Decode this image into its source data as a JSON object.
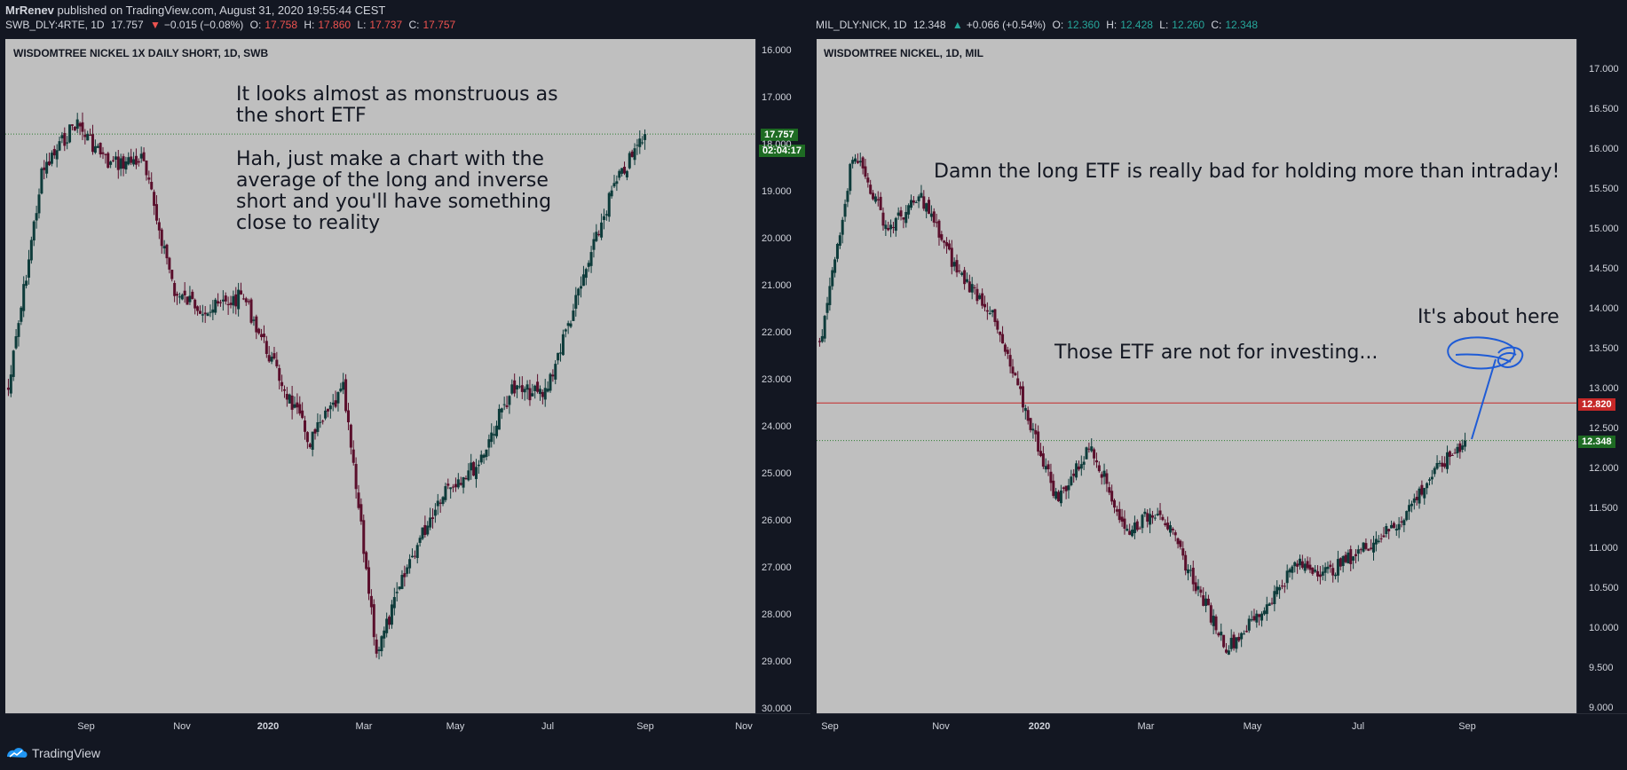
{
  "header": {
    "author": "MrRenev",
    "published": "published on TradingView.com, August 31, 2020 19:55:44 CEST"
  },
  "left": {
    "symbol": "SWB_DLY:4RTE, 1D",
    "last": "17.757",
    "change_arrow": "▼",
    "change": "−0.015 (−0.08%)",
    "o_label": "O:",
    "o": "17.758",
    "h_label": "H:",
    "h": "17.860",
    "l_label": "L:",
    "l": "17.737",
    "c_label": "C:",
    "c": "17.757",
    "title": "WISDOMTREE NICKEL 1X DAILY SHORT, 1D, SWB",
    "note1_line1": "It looks almost as monstruous as",
    "note1_line2": "the short ETF",
    "note2_line1": "Hah, just make a chart with the",
    "note2_line2": "average of the long and inverse",
    "note2_line3": "short and you'll have something",
    "note2_line4": "close to reality",
    "price_tag": "17.757",
    "time_tag": "02:04:17",
    "y_ticks": [
      "16.000",
      "17.000",
      "18.000",
      "19.000",
      "20.000",
      "21.000",
      "22.000",
      "23.000",
      "24.000",
      "25.000",
      "26.000",
      "27.000",
      "28.000",
      "29.000",
      "30.000"
    ],
    "x_ticks": [
      "Sep",
      "Nov",
      "2020",
      "Mar",
      "May",
      "Jul",
      "Sep",
      "Nov"
    ]
  },
  "right": {
    "symbol": "MIL_DLY:NICK, 1D",
    "last": "12.348",
    "change_arrow": "▲",
    "change": "+0.066 (+0.54%)",
    "o_label": "O:",
    "o": "12.360",
    "h_label": "H:",
    "h": "12.428",
    "l_label": "L:",
    "l": "12.260",
    "c_label": "C:",
    "c": "12.348",
    "title": "WISDOMTREE NICKEL, 1D, MIL",
    "note1": "Damn the long ETF is really bad for holding more than intraday!",
    "note2": "It's about here",
    "note3": "Those ETF are not for investing...",
    "red_tag": "12.820",
    "price_tag": "12.348",
    "y_ticks": [
      "17.000",
      "16.500",
      "16.000",
      "15.500",
      "15.000",
      "14.500",
      "14.000",
      "13.500",
      "13.000",
      "12.500",
      "12.000",
      "11.500",
      "11.000",
      "10.500",
      "10.000",
      "9.500",
      "9.000"
    ],
    "x_ticks": [
      "Sep",
      "Nov",
      "2020",
      "Mar",
      "May",
      "Jul",
      "Sep"
    ]
  },
  "footer": {
    "brand": "TradingView"
  },
  "chart_data": [
    {
      "type": "candlestick",
      "title": "WISDOMTREE NICKEL 1X DAILY SHORT, 1D, SWB",
      "y_inverted": true,
      "ylim": [
        16,
        30
      ],
      "x_labels": [
        "Sep",
        "Nov",
        "2020",
        "Mar",
        "May",
        "Jul",
        "Sep",
        "Nov"
      ],
      "close_path": [
        [
          "Aug 2019",
          23.2
        ],
        [
          "Sep 2019",
          18.6
        ],
        [
          "Sep 2019",
          17.5
        ],
        [
          "Oct 2019",
          18.4
        ],
        [
          "Nov 2019",
          18.3
        ],
        [
          "Nov 2019",
          21.2
        ],
        [
          "Dec 2019",
          21.5
        ],
        [
          "Jan 2020",
          21.2
        ],
        [
          "Feb 2020",
          22.8
        ],
        [
          "Feb 2020",
          24.3
        ],
        [
          "Mar 2020",
          23.2
        ],
        [
          "Mar 2020",
          28.8
        ],
        [
          "Apr 2020",
          26.8
        ],
        [
          "May 2020",
          25.3
        ],
        [
          "Jun 2020",
          24.8
        ],
        [
          "Jun 2020",
          23.2
        ],
        [
          "Jul 2020",
          23.3
        ],
        [
          "Aug 2020",
          21.2
        ],
        [
          "Aug 2020",
          19.0
        ],
        [
          "Aug 2020",
          17.757
        ]
      ],
      "last": 17.757
    },
    {
      "type": "candlestick",
      "title": "WISDOMTREE NICKEL, 1D, MIL",
      "ylim": [
        9,
        17.3
      ],
      "x_labels": [
        "Sep",
        "Nov",
        "2020",
        "Mar",
        "May",
        "Jul",
        "Sep"
      ],
      "close_path": [
        [
          "Aug 2019",
          13.5
        ],
        [
          "Aug 2019",
          16.0
        ],
        [
          "Sep 2019",
          15.0
        ],
        [
          "Oct 2019",
          15.4
        ],
        [
          "Oct 2019",
          14.5
        ],
        [
          "Nov 2019",
          14.0
        ],
        [
          "Nov 2019",
          12.8
        ],
        [
          "Dec 2019",
          11.6
        ],
        [
          "Jan 2020",
          12.3
        ],
        [
          "Feb 2020",
          11.2
        ],
        [
          "Feb 2020",
          11.5
        ],
        [
          "Mar 2020",
          10.6
        ],
        [
          "Mar 2020",
          9.75
        ],
        [
          "Apr 2020",
          10.2
        ],
        [
          "May 2020",
          10.8
        ],
        [
          "Jun 2020",
          10.7
        ],
        [
          "Jul 2020",
          11.0
        ],
        [
          "Aug 2020",
          11.3
        ],
        [
          "Aug 2020",
          11.9
        ],
        [
          "Sep 2020",
          12.348
        ]
      ],
      "horizontal_lines": [
        12.82,
        12.348
      ],
      "last": 12.348
    }
  ]
}
